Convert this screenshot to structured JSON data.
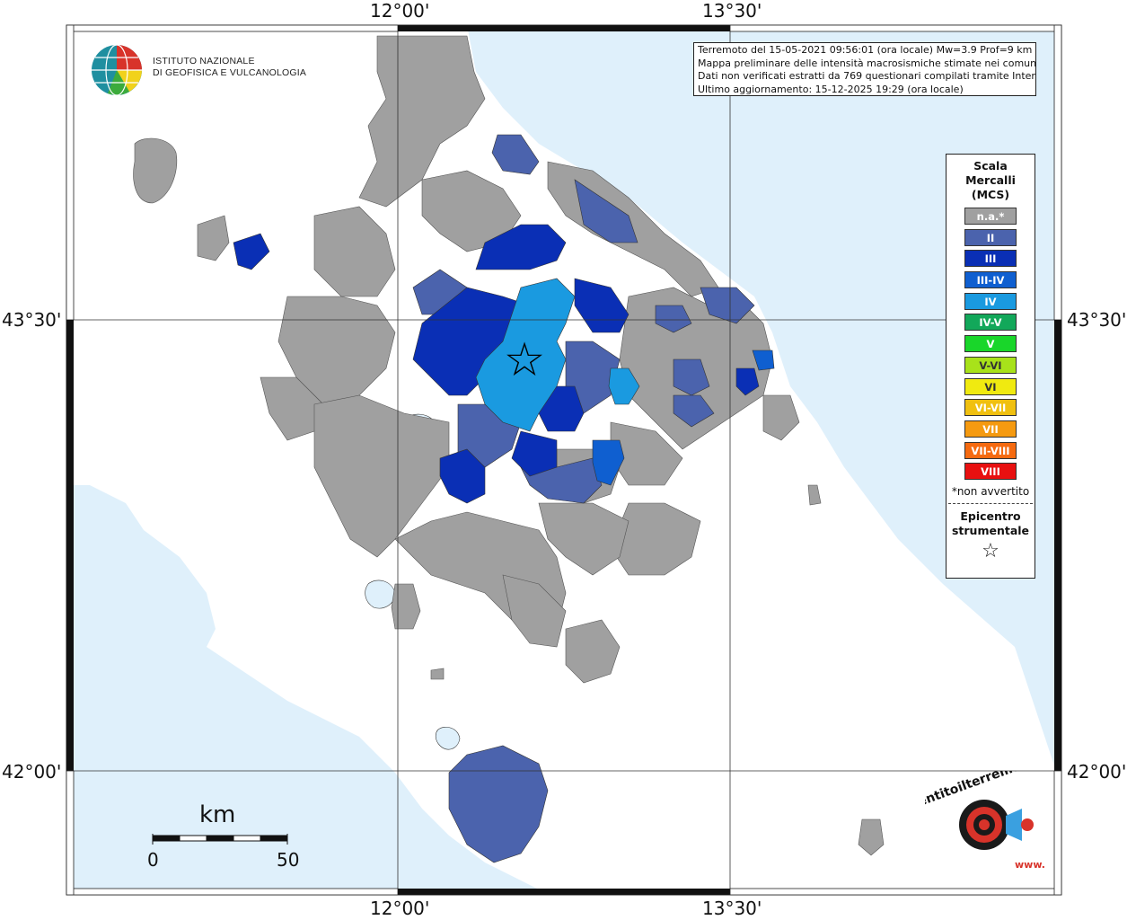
{
  "map": {
    "coordinate_labels": {
      "top_left_lon": "12°00'",
      "top_right_lon": "13°30'",
      "bottom_left_lon": "12°00'",
      "bottom_right_lon": "13°30'",
      "left_upper_lat": "43°30'",
      "left_lower_lat": "42°00'",
      "right_upper_lat": "43°30'",
      "right_lower_lat": "42°00'"
    },
    "sea_color": "#dff0fb",
    "land_color": "#ffffff",
    "epicenter_symbol": "☆"
  },
  "logo": {
    "icon": "ingv-globe-icon",
    "line1": "ISTITUTO NAZIONALE",
    "line2": "DI GEOFISICA E VULCANOLOGIA"
  },
  "info": {
    "line1": "Terremoto del 15-05-2021 09:56:01 (ora locale) Mw=3.9 Prof=9 km",
    "line2": "Mappa preliminare delle intensità macrosismiche stimate nei comuni",
    "line3": "Dati non verificati estratti da 769 questionari compilati tramite Internet.",
    "line4": "Ultimo aggiornamento: 15-12-2025 19:29 (ora locale)"
  },
  "legend": {
    "title1": "Scala",
    "title2": "Mercalli",
    "title3": "(MCS)",
    "classes": [
      {
        "label": "n.a.*",
        "color": "#a0a0a0"
      },
      {
        "label": "II",
        "color": "#4b63ad"
      },
      {
        "label": "III",
        "color": "#0a2fb5"
      },
      {
        "label": "III-IV",
        "color": "#0f5fd0"
      },
      {
        "label": "IV",
        "color": "#1a9ae0"
      },
      {
        "label": "IV-V",
        "color": "#12a85a"
      },
      {
        "label": "V",
        "color": "#19d62a"
      },
      {
        "label": "V-VI",
        "color": "#a8e21a"
      },
      {
        "label": "VI",
        "color": "#f0ea10"
      },
      {
        "label": "VI-VII",
        "color": "#f0c010"
      },
      {
        "label": "VII",
        "color": "#f59a10"
      },
      {
        "label": "VII-VIII",
        "color": "#f56a10"
      },
      {
        "label": "VIII",
        "color": "#e81010"
      }
    ],
    "note": "*non avvertito",
    "epicenter1": "Epicentro",
    "epicenter2": "strumentale",
    "epicenter_symbol": "☆"
  },
  "scalebar": {
    "title": "km",
    "min": "0",
    "max": "50"
  },
  "watermark": {
    "icon": "haisentito-logo-icon",
    "text": "haisentitoilterremoto.it",
    "www": "www."
  }
}
